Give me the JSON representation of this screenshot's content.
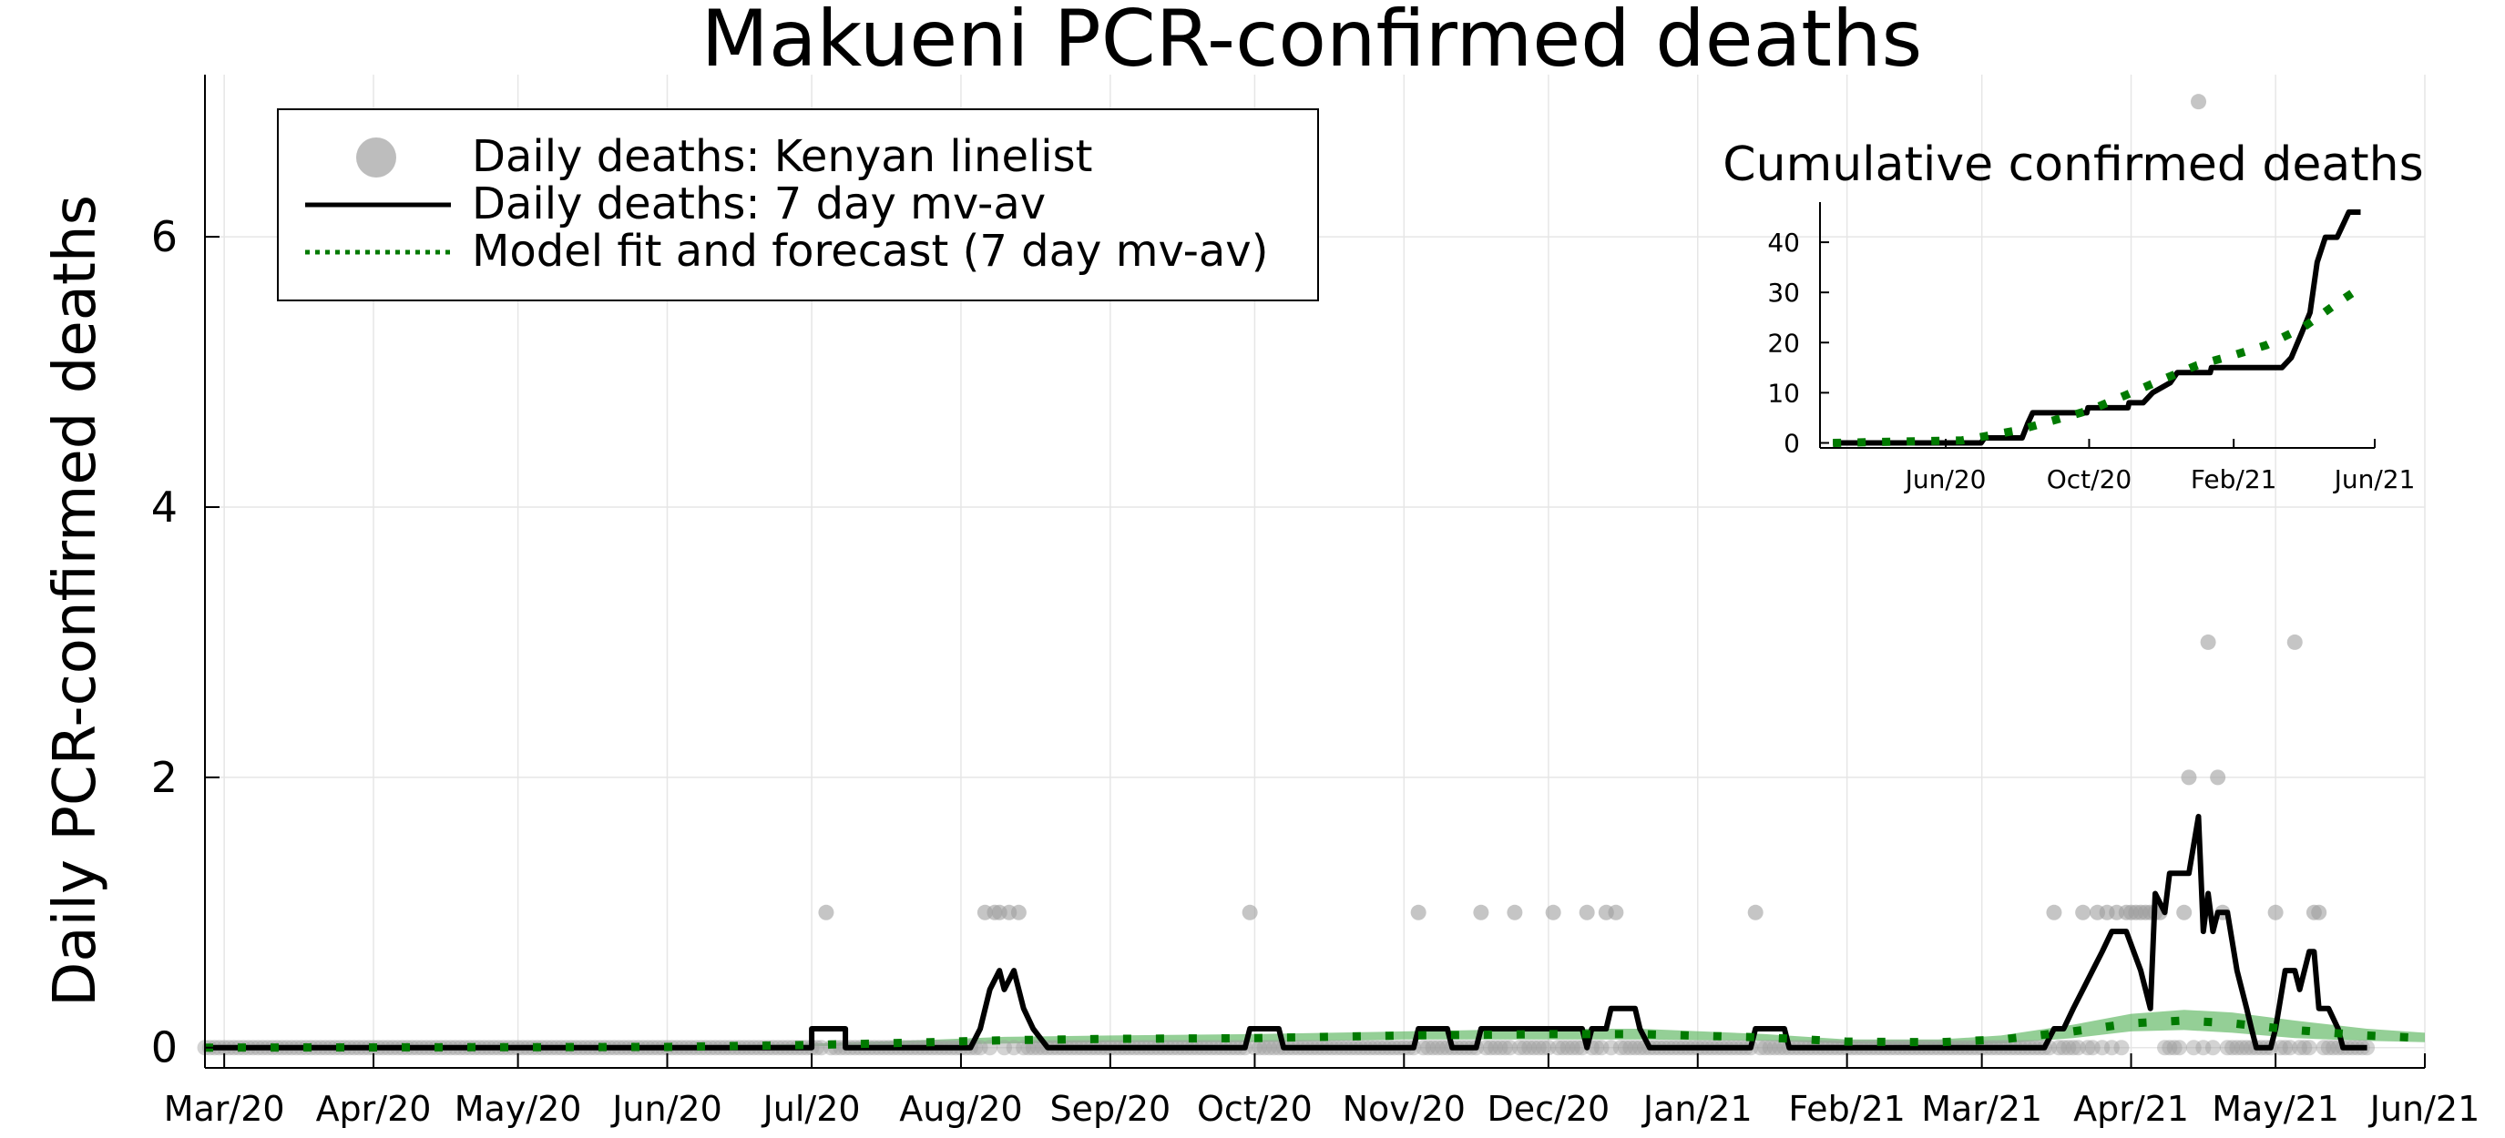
{
  "chart_data": [
    {
      "type": "line",
      "title": "Makueni PCR-confirmed deaths",
      "ylabel": "Daily PCR-confirmed deaths",
      "xlabel": "",
      "x_unit": "date",
      "xlim": [
        "2020-02-26",
        "2021-06-01"
      ],
      "ylim": [
        -0.15,
        7.2
      ],
      "yticks": [
        0,
        2,
        4,
        6
      ],
      "xticks": [
        {
          "date": "2020-03-01",
          "label": "Mar/20"
        },
        {
          "date": "2020-04-01",
          "label": "Apr/20"
        },
        {
          "date": "2020-05-01",
          "label": "May/20"
        },
        {
          "date": "2020-06-01",
          "label": "Jun/20"
        },
        {
          "date": "2020-07-01",
          "label": "Jul/20"
        },
        {
          "date": "2020-08-01",
          "label": "Aug/20"
        },
        {
          "date": "2020-09-01",
          "label": "Sep/20"
        },
        {
          "date": "2020-10-01",
          "label": "Oct/20"
        },
        {
          "date": "2020-11-01",
          "label": "Nov/20"
        },
        {
          "date": "2020-12-01",
          "label": "Dec/20"
        },
        {
          "date": "2021-01-01",
          "label": "Jan/21"
        },
        {
          "date": "2021-02-01",
          "label": "Feb/21"
        },
        {
          "date": "2021-03-01",
          "label": "Mar/21"
        },
        {
          "date": "2021-04-01",
          "label": "Apr/21"
        },
        {
          "date": "2021-05-01",
          "label": "May/21"
        },
        {
          "date": "2021-06-01",
          "label": "Jun/21"
        }
      ],
      "grid": true,
      "legend_position": "top-left",
      "series": [
        {
          "name": "Daily deaths: Kenyan linelist",
          "type": "scatter",
          "color": "#9e9e9e",
          "start": "2020-02-26",
          "end": "2021-05-20",
          "points": [
            {
              "x": "2020-07-04",
              "y": 1
            },
            {
              "x": "2020-08-06",
              "y": 1
            },
            {
              "x": "2020-08-08",
              "y": 1
            },
            {
              "x": "2020-08-09",
              "y": 1
            },
            {
              "x": "2020-08-11",
              "y": 1
            },
            {
              "x": "2020-08-13",
              "y": 1
            },
            {
              "x": "2020-09-30",
              "y": 1
            },
            {
              "x": "2020-11-04",
              "y": 1
            },
            {
              "x": "2020-11-17",
              "y": 1
            },
            {
              "x": "2020-11-24",
              "y": 1
            },
            {
              "x": "2020-12-02",
              "y": 1
            },
            {
              "x": "2020-12-09",
              "y": 1
            },
            {
              "x": "2020-12-13",
              "y": 1
            },
            {
              "x": "2020-12-15",
              "y": 1
            },
            {
              "x": "2021-01-13",
              "y": 1
            },
            {
              "x": "2021-03-16",
              "y": 1
            },
            {
              "x": "2021-03-22",
              "y": 1
            },
            {
              "x": "2021-03-25",
              "y": 1
            },
            {
              "x": "2021-03-27",
              "y": 1
            },
            {
              "x": "2021-03-29",
              "y": 1
            },
            {
              "x": "2021-03-31",
              "y": 1
            },
            {
              "x": "2021-04-01",
              "y": 1
            },
            {
              "x": "2021-04-02",
              "y": 1
            },
            {
              "x": "2021-04-03",
              "y": 1
            },
            {
              "x": "2021-04-04",
              "y": 1
            },
            {
              "x": "2021-04-05",
              "y": 1
            },
            {
              "x": "2021-04-06",
              "y": 1
            },
            {
              "x": "2021-04-07",
              "y": 1
            },
            {
              "x": "2021-04-12",
              "y": 1
            },
            {
              "x": "2021-04-13",
              "y": 2
            },
            {
              "x": "2021-04-15",
              "y": 7
            },
            {
              "x": "2021-04-17",
              "y": 3
            },
            {
              "x": "2021-04-19",
              "y": 2
            },
            {
              "x": "2021-04-20",
              "y": 1
            },
            {
              "x": "2021-05-01",
              "y": 1
            },
            {
              "x": "2021-05-05",
              "y": 3
            },
            {
              "x": "2021-05-09",
              "y": 1
            },
            {
              "x": "2021-05-10",
              "y": 1
            }
          ]
        },
        {
          "name": "Daily deaths: 7 day mv-av",
          "type": "line",
          "color": "#000000",
          "points": [
            {
              "x": "2020-02-26",
              "y": 0
            },
            {
              "x": "2020-07-01",
              "y": 0
            },
            {
              "x": "2020-07-01",
              "y": 0.14
            },
            {
              "x": "2020-07-08",
              "y": 0.14
            },
            {
              "x": "2020-07-08",
              "y": 0
            },
            {
              "x": "2020-08-03",
              "y": 0
            },
            {
              "x": "2020-08-05",
              "y": 0.14
            },
            {
              "x": "2020-08-07",
              "y": 0.43
            },
            {
              "x": "2020-08-09",
              "y": 0.57
            },
            {
              "x": "2020-08-10",
              "y": 0.43
            },
            {
              "x": "2020-08-12",
              "y": 0.57
            },
            {
              "x": "2020-08-14",
              "y": 0.29
            },
            {
              "x": "2020-08-16",
              "y": 0.14
            },
            {
              "x": "2020-08-19",
              "y": 0
            },
            {
              "x": "2020-09-29",
              "y": 0
            },
            {
              "x": "2020-09-30",
              "y": 0.14
            },
            {
              "x": "2020-10-06",
              "y": 0.14
            },
            {
              "x": "2020-10-07",
              "y": 0
            },
            {
              "x": "2020-11-03",
              "y": 0
            },
            {
              "x": "2020-11-04",
              "y": 0.14
            },
            {
              "x": "2020-11-10",
              "y": 0.14
            },
            {
              "x": "2020-11-11",
              "y": 0
            },
            {
              "x": "2020-11-16",
              "y": 0
            },
            {
              "x": "2020-11-17",
              "y": 0.14
            },
            {
              "x": "2020-12-08",
              "y": 0.14
            },
            {
              "x": "2020-12-09",
              "y": 0
            },
            {
              "x": "2020-12-10",
              "y": 0.14
            },
            {
              "x": "2020-12-13",
              "y": 0.14
            },
            {
              "x": "2020-12-14",
              "y": 0.29
            },
            {
              "x": "2020-12-19",
              "y": 0.29
            },
            {
              "x": "2020-12-20",
              "y": 0.14
            },
            {
              "x": "2020-12-22",
              "y": 0
            },
            {
              "x": "2021-01-12",
              "y": 0
            },
            {
              "x": "2021-01-13",
              "y": 0.14
            },
            {
              "x": "2021-01-19",
              "y": 0.14
            },
            {
              "x": "2021-01-20",
              "y": 0
            },
            {
              "x": "2021-03-14",
              "y": 0
            },
            {
              "x": "2021-03-16",
              "y": 0.14
            },
            {
              "x": "2021-03-18",
              "y": 0.14
            },
            {
              "x": "2021-03-20",
              "y": 0.29
            },
            {
              "x": "2021-03-22",
              "y": 0.43
            },
            {
              "x": "2021-03-24",
              "y": 0.57
            },
            {
              "x": "2021-03-26",
              "y": 0.71
            },
            {
              "x": "2021-03-28",
              "y": 0.86
            },
            {
              "x": "2021-03-31",
              "y": 0.86
            },
            {
              "x": "2021-04-03",
              "y": 0.57
            },
            {
              "x": "2021-04-05",
              "y": 0.29
            },
            {
              "x": "2021-04-06",
              "y": 1.14
            },
            {
              "x": "2021-04-08",
              "y": 1.0
            },
            {
              "x": "2021-04-09",
              "y": 1.29
            },
            {
              "x": "2021-04-13",
              "y": 1.29
            },
            {
              "x": "2021-04-15",
              "y": 1.71
            },
            {
              "x": "2021-04-16",
              "y": 0.86
            },
            {
              "x": "2021-04-17",
              "y": 1.14
            },
            {
              "x": "2021-04-18",
              "y": 0.86
            },
            {
              "x": "2021-04-19",
              "y": 1.0
            },
            {
              "x": "2021-04-21",
              "y": 1.0
            },
            {
              "x": "2021-04-23",
              "y": 0.57
            },
            {
              "x": "2021-04-25",
              "y": 0.29
            },
            {
              "x": "2021-04-26",
              "y": 0.14
            },
            {
              "x": "2021-04-27",
              "y": 0
            },
            {
              "x": "2021-04-30",
              "y": 0
            },
            {
              "x": "2021-05-01",
              "y": 0.14
            },
            {
              "x": "2021-05-03",
              "y": 0.57
            },
            {
              "x": "2021-05-05",
              "y": 0.57
            },
            {
              "x": "2021-05-06",
              "y": 0.43
            },
            {
              "x": "2021-05-08",
              "y": 0.71
            },
            {
              "x": "2021-05-09",
              "y": 0.71
            },
            {
              "x": "2021-05-10",
              "y": 0.29
            },
            {
              "x": "2021-05-12",
              "y": 0.29
            },
            {
              "x": "2021-05-14",
              "y": 0.14
            },
            {
              "x": "2021-05-15",
              "y": 0
            },
            {
              "x": "2021-05-20",
              "y": 0
            }
          ]
        },
        {
          "name": "Model fit and forecast (7 day mv-av)",
          "type": "line",
          "style": "dotted",
          "color": "#007a00",
          "band_color": "#4caf50",
          "points": [
            {
              "x": "2020-02-26",
              "y": 0,
              "lo": 0,
              "hi": 0
            },
            {
              "x": "2020-06-01",
              "y": 0.005,
              "lo": 0,
              "hi": 0.01
            },
            {
              "x": "2020-07-01",
              "y": 0.02,
              "lo": 0.01,
              "hi": 0.03
            },
            {
              "x": "2020-07-20",
              "y": 0.035,
              "lo": 0.02,
              "hi": 0.05
            },
            {
              "x": "2020-08-10",
              "y": 0.055,
              "lo": 0.03,
              "hi": 0.08
            },
            {
              "x": "2020-09-01",
              "y": 0.065,
              "lo": 0.04,
              "hi": 0.09
            },
            {
              "x": "2020-10-01",
              "y": 0.07,
              "lo": 0.04,
              "hi": 0.1
            },
            {
              "x": "2020-11-01",
              "y": 0.09,
              "lo": 0.06,
              "hi": 0.12
            },
            {
              "x": "2020-12-01",
              "y": 0.1,
              "lo": 0.06,
              "hi": 0.14
            },
            {
              "x": "2020-12-20",
              "y": 0.1,
              "lo": 0.06,
              "hi": 0.14
            },
            {
              "x": "2021-01-15",
              "y": 0.075,
              "lo": 0.05,
              "hi": 0.1
            },
            {
              "x": "2021-02-01",
              "y": 0.045,
              "lo": 0.03,
              "hi": 0.06
            },
            {
              "x": "2021-02-20",
              "y": 0.04,
              "lo": 0.02,
              "hi": 0.06
            },
            {
              "x": "2021-03-05",
              "y": 0.06,
              "lo": 0.03,
              "hi": 0.09
            },
            {
              "x": "2021-03-20",
              "y": 0.12,
              "lo": 0.07,
              "hi": 0.17
            },
            {
              "x": "2021-04-01",
              "y": 0.18,
              "lo": 0.12,
              "hi": 0.25
            },
            {
              "x": "2021-04-12",
              "y": 0.2,
              "lo": 0.13,
              "hi": 0.28
            },
            {
              "x": "2021-04-22",
              "y": 0.18,
              "lo": 0.11,
              "hi": 0.26
            },
            {
              "x": "2021-05-05",
              "y": 0.13,
              "lo": 0.07,
              "hi": 0.2
            },
            {
              "x": "2021-05-20",
              "y": 0.09,
              "lo": 0.05,
              "hi": 0.14
            },
            {
              "x": "2021-06-01",
              "y": 0.07,
              "lo": 0.04,
              "hi": 0.11
            }
          ]
        }
      ]
    },
    {
      "type": "line",
      "title": "Cumulative confirmed deaths",
      "x_unit": "date",
      "xlim": [
        "2020-02-15",
        "2021-06-01"
      ],
      "ylim": [
        -1,
        48
      ],
      "yticks": [
        0,
        10,
        20,
        30,
        40
      ],
      "xticks": [
        {
          "date": "2020-06-01",
          "label": "Jun/20"
        },
        {
          "date": "2020-10-01",
          "label": "Oct/20"
        },
        {
          "date": "2021-02-01",
          "label": "Feb/21"
        },
        {
          "date": "2021-06-01",
          "label": "Jun/21"
        }
      ],
      "grid": false,
      "series": [
        {
          "type": "line",
          "color": "#000000",
          "points": [
            {
              "x": "2020-02-26",
              "y": 0
            },
            {
              "x": "2020-07-01",
              "y": 0
            },
            {
              "x": "2020-07-04",
              "y": 1
            },
            {
              "x": "2020-08-05",
              "y": 1
            },
            {
              "x": "2020-08-10",
              "y": 4
            },
            {
              "x": "2020-08-14",
              "y": 6
            },
            {
              "x": "2020-09-29",
              "y": 6
            },
            {
              "x": "2020-09-30",
              "y": 7
            },
            {
              "x": "2020-11-03",
              "y": 7
            },
            {
              "x": "2020-11-04",
              "y": 8
            },
            {
              "x": "2020-11-16",
              "y": 8
            },
            {
              "x": "2020-11-24",
              "y": 10
            },
            {
              "x": "2020-12-09",
              "y": 12
            },
            {
              "x": "2020-12-15",
              "y": 14
            },
            {
              "x": "2021-01-12",
              "y": 14
            },
            {
              "x": "2021-01-13",
              "y": 15
            },
            {
              "x": "2021-03-14",
              "y": 15
            },
            {
              "x": "2021-03-22",
              "y": 17
            },
            {
              "x": "2021-03-31",
              "y": 22
            },
            {
              "x": "2021-04-07",
              "y": 26
            },
            {
              "x": "2021-04-13",
              "y": 36
            },
            {
              "x": "2021-04-20",
              "y": 41
            },
            {
              "x": "2021-04-30",
              "y": 41
            },
            {
              "x": "2021-05-06",
              "y": 44
            },
            {
              "x": "2021-05-10",
              "y": 46
            },
            {
              "x": "2021-05-20",
              "y": 46
            }
          ]
        },
        {
          "type": "line",
          "style": "dotted",
          "color": "#007a00",
          "points": [
            {
              "x": "2020-02-26",
              "y": 0
            },
            {
              "x": "2020-06-15",
              "y": 0.5
            },
            {
              "x": "2020-08-01",
              "y": 2.5
            },
            {
              "x": "2020-09-01",
              "y": 4.5
            },
            {
              "x": "2020-10-01",
              "y": 6.5
            },
            {
              "x": "2020-11-01",
              "y": 9.5
            },
            {
              "x": "2020-12-01",
              "y": 12.5
            },
            {
              "x": "2021-01-01",
              "y": 15.5
            },
            {
              "x": "2021-02-01",
              "y": 17.5
            },
            {
              "x": "2021-03-01",
              "y": 19.5
            },
            {
              "x": "2021-04-01",
              "y": 23
            },
            {
              "x": "2021-05-01",
              "y": 28
            },
            {
              "x": "2021-05-20",
              "y": 31
            }
          ]
        }
      ]
    }
  ]
}
